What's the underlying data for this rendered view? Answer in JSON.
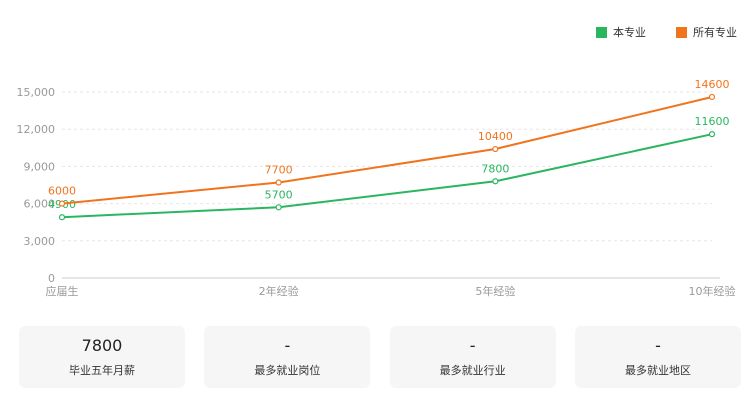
{
  "chart_data": {
    "type": "line",
    "categories": [
      "应届生",
      "2年经验",
      "5年经验",
      "10年经验"
    ],
    "series": [
      {
        "name": "本专业",
        "color": "#2ab661",
        "values": [
          4900,
          5700,
          7800,
          11600
        ],
        "labels": [
          "4900",
          "5700",
          "7800",
          "11600"
        ]
      },
      {
        "name": "所有专业",
        "color": "#f0741e",
        "values": [
          6000,
          7700,
          10400,
          14600
        ],
        "labels": [
          "6000",
          "7700",
          "10400",
          "14600"
        ]
      }
    ],
    "ylim": [
      0,
      15000
    ],
    "yticks": [
      0,
      3000,
      6000,
      9000,
      12000,
      15000
    ],
    "ytick_labels": [
      "0",
      "3,000",
      "6,000",
      "9,000",
      "12,000",
      "15,000"
    ],
    "grid": true,
    "legend_position": "top-right"
  },
  "cards": [
    {
      "value": "7800",
      "label": "毕业五年月薪"
    },
    {
      "value": "-",
      "label": "最多就业岗位"
    },
    {
      "value": "-",
      "label": "最多就业行业"
    },
    {
      "value": "-",
      "label": "最多就业地区"
    }
  ]
}
